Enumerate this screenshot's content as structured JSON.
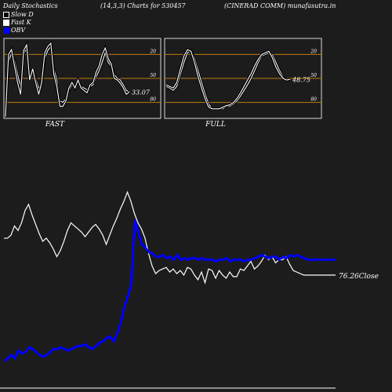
{
  "header": {
    "title": "Daily Stochastics",
    "params": "(14,3,3) Charts for 530457",
    "company": "(CINERAD COMM) munafasutra.in"
  },
  "legend": [
    {
      "label": "Slow  D",
      "color": "#ffffff",
      "fill": "#000000"
    },
    {
      "label": "Fast K",
      "color": "#ffffff",
      "fill": "#ffffff"
    },
    {
      "label": "OBV",
      "color": "#0000cc",
      "fill": "#0000ff"
    }
  ],
  "colors": {
    "background": "#1c1c1c",
    "panel_border": "#d9d9d9",
    "reference_line": "#c07a10",
    "price": "#ffffff",
    "obv": "#0000ff"
  },
  "chart_data": [
    {
      "type": "line",
      "title": "FAST",
      "ylim": [
        0,
        100
      ],
      "reference_lines": [
        20,
        50,
        80
      ],
      "y_tick_labels": [
        "80",
        "50",
        "20"
      ],
      "last_value_label": "33.07",
      "series": [
        {
          "name": "Slow  D",
          "values": [
            4,
            70,
            82,
            72,
            55,
            40,
            80,
            88,
            55,
            60,
            50,
            38,
            42,
            75,
            85,
            90,
            62,
            48,
            22,
            20,
            25,
            35,
            42,
            40,
            45,
            40,
            38,
            36,
            40,
            42,
            52,
            60,
            70,
            82,
            70,
            65,
            55,
            50,
            48,
            42,
            35,
            33
          ]
        },
        {
          "name": "Fast K",
          "values": [
            2,
            80,
            86,
            65,
            45,
            30,
            85,
            92,
            48,
            62,
            45,
            30,
            45,
            82,
            90,
            94,
            55,
            40,
            15,
            15,
            22,
            38,
            45,
            38,
            48,
            38,
            35,
            32,
            42,
            45,
            58,
            66,
            80,
            88,
            75,
            68,
            50,
            48,
            44,
            38,
            30,
            33
          ]
        }
      ]
    },
    {
      "type": "line",
      "title": "FULL",
      "ylim": [
        0,
        100
      ],
      "reference_lines": [
        20,
        50,
        80
      ],
      "y_tick_labels": [
        "80",
        "50",
        "20"
      ],
      "last_value_label": "48.75",
      "series": [
        {
          "name": "Slow  D",
          "values": [
            40,
            38,
            35,
            40,
            55,
            70,
            82,
            85,
            75,
            60,
            45,
            30,
            18,
            12,
            12,
            12,
            12,
            15,
            15,
            18,
            22,
            28,
            35,
            42,
            50,
            60,
            70,
            78,
            80,
            82,
            80,
            70,
            60,
            52,
            48,
            48
          ]
        },
        {
          "name": "Fast K",
          "values": [
            42,
            40,
            38,
            45,
            62,
            78,
            86,
            84,
            70,
            52,
            38,
            24,
            14,
            12,
            12,
            12,
            14,
            16,
            17,
            20,
            25,
            32,
            40,
            48,
            56,
            66,
            74,
            80,
            82,
            84,
            76,
            64,
            56,
            50,
            48,
            48.75
          ]
        }
      ]
    },
    {
      "type": "line",
      "title": "",
      "last_value_label": "76.26",
      "last_value_suffix": "Close",
      "x": [
        0,
        1,
        2,
        3,
        4,
        5,
        6,
        7,
        8,
        9,
        10,
        11,
        12,
        13,
        14,
        15,
        16,
        17,
        18,
        19,
        20,
        21,
        22,
        23,
        24,
        25,
        26,
        27,
        28,
        29,
        30,
        31,
        32,
        33,
        34,
        35,
        36,
        37,
        38,
        39,
        40,
        41,
        42,
        43,
        44,
        45,
        46,
        47,
        48,
        49,
        50,
        51,
        52,
        53,
        54,
        55,
        56,
        57,
        58,
        59,
        60,
        61,
        62,
        63,
        64,
        65,
        66,
        67,
        68,
        69,
        70,
        71,
        72,
        73,
        74,
        75,
        76,
        77,
        78,
        79,
        80,
        81,
        82,
        83,
        84,
        85,
        86,
        87,
        88,
        89,
        90,
        91,
        92,
        93,
        94
      ],
      "series": [
        {
          "name": "Close",
          "values": [
            100,
            100,
            102,
            108,
            105,
            110,
            118,
            122,
            115,
            109,
            103,
            98,
            100,
            97,
            93,
            88,
            92,
            98,
            105,
            110,
            108,
            106,
            104,
            101,
            104,
            107,
            109,
            106,
            102,
            96,
            102,
            108,
            113,
            119,
            124,
            130,
            124,
            116,
            110,
            106,
            100,
            90,
            82,
            77,
            79,
            80,
            81,
            78,
            80,
            77,
            79,
            76,
            81,
            80,
            76,
            73,
            78,
            71,
            80,
            79,
            74,
            79,
            76,
            74,
            78,
            75,
            75,
            80,
            79,
            82,
            85,
            80,
            82,
            85,
            89,
            86,
            88,
            84,
            86,
            86,
            88,
            83,
            79,
            78,
            77,
            76,
            76,
            76,
            76,
            76,
            76,
            76,
            76,
            76,
            76
          ]
        },
        {
          "name": "OBV",
          "values": [
            20,
            22,
            24,
            22,
            27,
            25,
            26,
            29,
            28,
            26,
            24,
            23,
            24,
            26,
            28,
            28,
            29,
            28,
            27,
            28,
            29,
            30,
            30,
            31,
            29,
            28,
            30,
            32,
            33,
            35,
            36,
            33,
            38,
            45,
            55,
            62,
            70,
            112,
            104,
            96,
            94,
            91,
            90,
            88,
            88,
            89,
            87,
            88,
            86,
            89,
            86,
            87,
            86,
            87,
            87,
            86,
            87,
            86,
            86,
            86,
            85,
            86,
            86,
            87,
            85,
            86,
            86,
            86,
            85,
            86,
            86,
            87,
            88,
            89,
            88,
            87,
            88,
            88,
            86,
            88,
            87,
            89,
            88,
            89,
            88,
            87,
            86,
            86,
            86,
            86,
            86,
            86,
            86,
            86,
            86
          ]
        }
      ]
    }
  ]
}
